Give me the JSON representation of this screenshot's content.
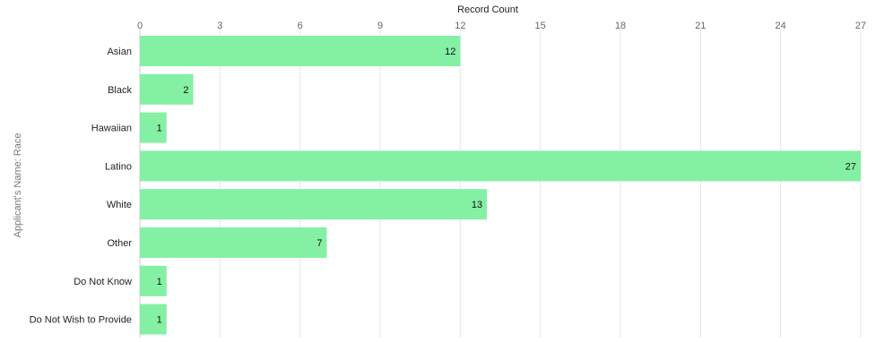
{
  "chart_data": {
    "type": "bar",
    "orientation": "horizontal",
    "xlabel": "Record Count",
    "ylabel": "Applicant's Name: Race",
    "categories": [
      "Asian",
      "Black",
      "Hawaiian",
      "Latino",
      "White",
      "Other",
      "Do Not Know",
      "Do Not Wish to Provide"
    ],
    "values": [
      12,
      2,
      1,
      27,
      13,
      7,
      1,
      1
    ],
    "x_ticks": [
      0,
      3,
      6,
      9,
      12,
      15,
      18,
      21,
      24,
      27
    ],
    "xlim": [
      0,
      27
    ],
    "x_axis_position": "top",
    "grid": true,
    "bar_color": "#84f0a4",
    "data_labels": true
  }
}
